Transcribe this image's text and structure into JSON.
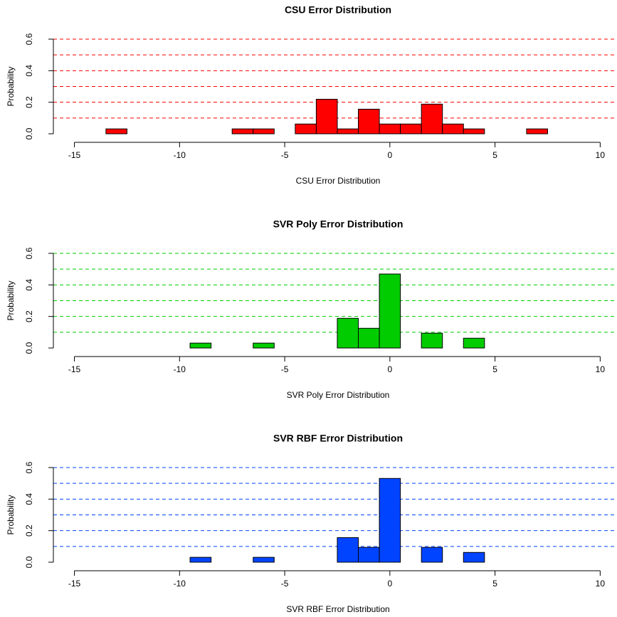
{
  "chart_data": [
    {
      "type": "histogram",
      "title": "CSU Error Distribution",
      "xlabel": "CSU Error Distribution",
      "ylabel": "Probability",
      "color": "#ff0000",
      "bins": [
        -14.5,
        -13.5,
        -12.5,
        -11.5,
        -10.5,
        -9.5,
        -8.5,
        -7.5,
        -6.5,
        -5.5,
        -4.5,
        -3.5,
        -2.5,
        -1.5,
        -0.5,
        0.5,
        1.5,
        2.5,
        3.5,
        4.5,
        5.5,
        6.5,
        7.5
      ],
      "values": [
        0,
        0.031,
        0,
        0,
        0,
        0,
        0,
        0.031,
        0.031,
        0,
        0.062,
        0.219,
        0.031,
        0.156,
        0.062,
        0.062,
        0.188,
        0.062,
        0.031,
        0,
        0,
        0.031
      ],
      "xlim": [
        -16,
        10.8
      ],
      "ylim": [
        0,
        0.6
      ],
      "xticks": [
        -15,
        -10,
        -5,
        0,
        5,
        10
      ],
      "yticks": [
        {
          "value": 0,
          "label": "0.0"
        },
        {
          "value": 0.2,
          "label": "0.2"
        },
        {
          "value": 0.4,
          "label": "0.4"
        },
        {
          "value": 0.6,
          "label": "0.6"
        }
      ],
      "grid_lines": [
        0.1,
        0.2,
        0.3,
        0.4,
        0.5,
        0.6
      ]
    },
    {
      "type": "histogram",
      "title": "SVR Poly Error Distribution",
      "xlabel": "SVR Poly Error Distribution",
      "ylabel": "Probability",
      "color": "#00cc00",
      "bins": [
        -14.5,
        -13.5,
        -12.5,
        -11.5,
        -10.5,
        -9.5,
        -8.5,
        -7.5,
        -6.5,
        -5.5,
        -4.5,
        -3.5,
        -2.5,
        -1.5,
        -0.5,
        0.5,
        1.5,
        2.5,
        3.5,
        4.5,
        5.5,
        6.5,
        7.5
      ],
      "values": [
        0,
        0,
        0,
        0,
        0,
        0.031,
        0,
        0,
        0.031,
        0,
        0,
        0,
        0.188,
        0.125,
        0.469,
        0,
        0.094,
        0,
        0.062,
        0,
        0,
        0
      ],
      "xlim": [
        -16,
        10.8
      ],
      "ylim": [
        0,
        0.6
      ],
      "xticks": [
        -15,
        -10,
        -5,
        0,
        5,
        10
      ],
      "yticks": [
        {
          "value": 0,
          "label": "0.0"
        },
        {
          "value": 0.2,
          "label": "0.2"
        },
        {
          "value": 0.4,
          "label": "0.4"
        },
        {
          "value": 0.6,
          "label": "0.6"
        }
      ],
      "grid_lines": [
        0.1,
        0.2,
        0.3,
        0.4,
        0.5,
        0.6
      ]
    },
    {
      "type": "histogram",
      "title": "SVR RBF Error Distribution",
      "xlabel": "SVR RBF Error Distribution",
      "ylabel": "Probability",
      "color": "#0044ff",
      "bins": [
        -14.5,
        -13.5,
        -12.5,
        -11.5,
        -10.5,
        -9.5,
        -8.5,
        -7.5,
        -6.5,
        -5.5,
        -4.5,
        -3.5,
        -2.5,
        -1.5,
        -0.5,
        0.5,
        1.5,
        2.5,
        3.5,
        4.5,
        5.5,
        6.5,
        7.5
      ],
      "values": [
        0,
        0,
        0,
        0,
        0,
        0.031,
        0,
        0,
        0.031,
        0,
        0,
        0,
        0.156,
        0.094,
        0.531,
        0,
        0.094,
        0,
        0.062,
        0,
        0,
        0
      ],
      "xlim": [
        -16,
        10.8
      ],
      "ylim": [
        0,
        0.6
      ],
      "xticks": [
        -15,
        -10,
        -5,
        0,
        5,
        10
      ],
      "yticks": [
        {
          "value": 0,
          "label": "0.0"
        },
        {
          "value": 0.2,
          "label": "0.2"
        },
        {
          "value": 0.4,
          "label": "0.4"
        },
        {
          "value": 0.6,
          "label": "0.6"
        }
      ],
      "grid_lines": [
        0.1,
        0.2,
        0.3,
        0.4,
        0.5,
        0.6
      ]
    }
  ]
}
